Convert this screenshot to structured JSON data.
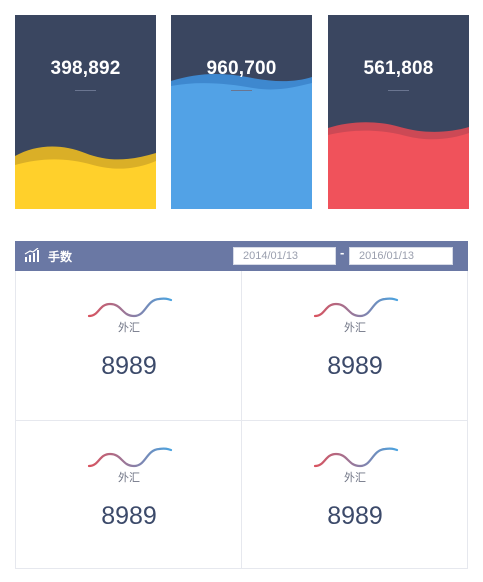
{
  "cards": [
    {
      "value": "398,892",
      "color": "#ffd02b",
      "wave_color": "#f7c21d",
      "level": 0.28
    },
    {
      "value": "960,700",
      "color": "#52a2e6",
      "wave_color": "#3f8fdc",
      "level": 0.67
    },
    {
      "value": "561,808",
      "color": "#f0525b",
      "wave_color": "#e64a54",
      "level": 0.42
    }
  ],
  "panel": {
    "title": "手数",
    "title_icon": "bar-chart-icon",
    "header_color": "#6a78a4",
    "date_from": "2014/01/13",
    "date_to": "2016/01/13",
    "date_separator": "-",
    "items": [
      {
        "label": "外汇",
        "value": "8989",
        "icon": "wave-icon"
      },
      {
        "label": "外汇",
        "value": "8989",
        "icon": "wave-icon"
      },
      {
        "label": "外汇",
        "value": "8989",
        "icon": "wave-icon"
      },
      {
        "label": "外汇",
        "value": "8989",
        "icon": "wave-icon"
      }
    ]
  },
  "colors": {
    "card_bg": "#3a4660",
    "wave_start": "#d9535f",
    "wave_end": "#4aa3e0",
    "number_text": "#3c4a6a"
  }
}
